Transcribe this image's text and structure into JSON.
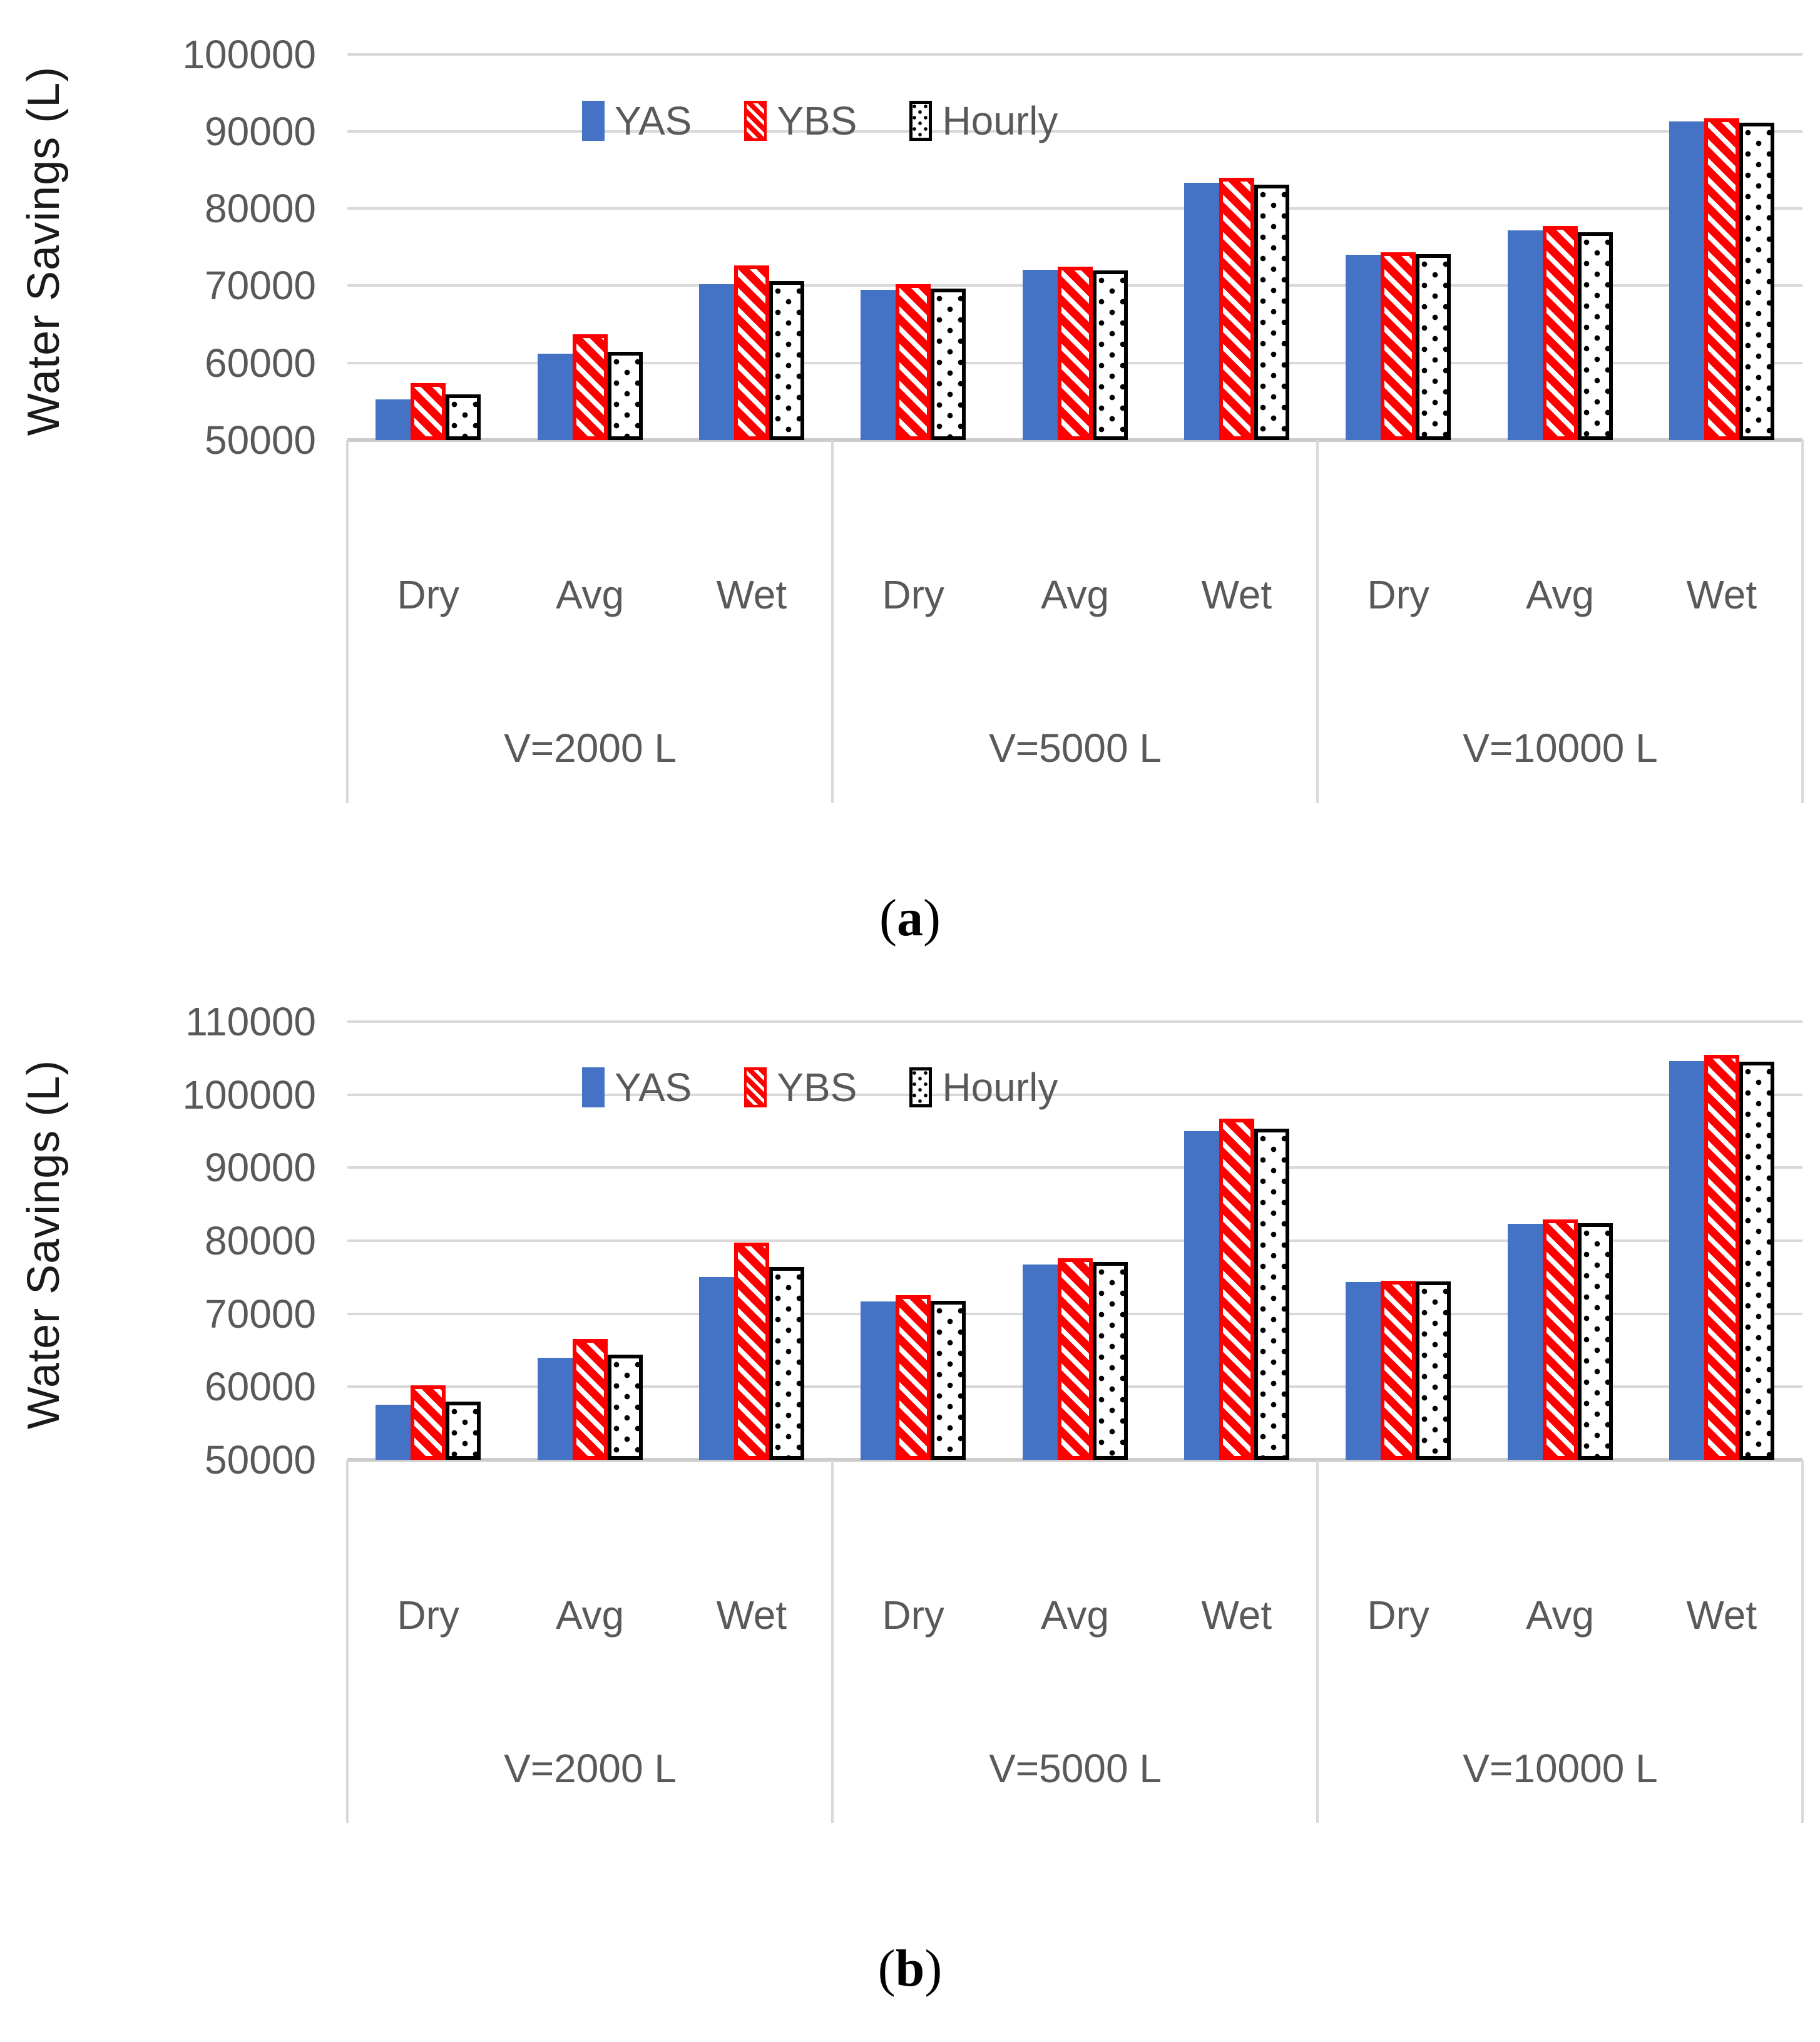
{
  "chart_data": [
    {
      "type": "bar",
      "panel": "a",
      "title": "",
      "ylabel": "Water Savings (L)",
      "ylim": [
        50000,
        100000
      ],
      "ytick_step": 10000,
      "y_ticks": [
        100000,
        90000,
        80000,
        70000,
        60000,
        50000
      ],
      "grid": true,
      "legend_position": "top-center",
      "group_labels": [
        "V=2000 L",
        "V=5000 L",
        "V=10000 L"
      ],
      "condition_labels": [
        "Dry",
        "Avg",
        "Wet"
      ],
      "categories": [
        "Dry",
        "Avg",
        "Wet",
        "Dry",
        "Avg",
        "Wet",
        "Dry",
        "Avg",
        "Wet"
      ],
      "series": [
        {
          "name": "YAS",
          "pattern": "solid",
          "color": "#4472C4",
          "values": [
            55300,
            61200,
            70200,
            69500,
            72100,
            83300,
            74000,
            77200,
            91300
          ]
        },
        {
          "name": "YBS",
          "pattern": "diagonal-stripes",
          "color": "#FF0000",
          "values": [
            57400,
            63700,
            72600,
            70200,
            72500,
            84000,
            74300,
            77700,
            91700
          ]
        },
        {
          "name": "Hourly",
          "pattern": "dots",
          "color": "#000000",
          "values": [
            55900,
            61400,
            70600,
            69600,
            72000,
            83100,
            74100,
            76900,
            91100
          ]
        }
      ],
      "caption": {
        "open": "(",
        "letter": "a",
        "close": ")"
      }
    },
    {
      "type": "bar",
      "panel": "b",
      "title": "",
      "ylabel": "Water Savings (L)",
      "ylim": [
        50000,
        110000
      ],
      "ytick_step": 10000,
      "y_ticks": [
        110000,
        100000,
        90000,
        80000,
        70000,
        60000,
        50000
      ],
      "grid": true,
      "legend_position": "top-center",
      "group_labels": [
        "V=2000 L",
        "V=5000 L",
        "V=10000 L"
      ],
      "condition_labels": [
        "Dry",
        "Avg",
        "Wet"
      ],
      "categories": [
        "Dry",
        "Avg",
        "Wet",
        "Dry",
        "Avg",
        "Wet",
        "Dry",
        "Avg",
        "Wet"
      ],
      "series": [
        {
          "name": "YAS",
          "pattern": "solid",
          "color": "#4472C4",
          "values": [
            57500,
            64000,
            75000,
            71700,
            76700,
            95000,
            74300,
            82300,
            104600
          ]
        },
        {
          "name": "YBS",
          "pattern": "diagonal-stripes",
          "color": "#FF0000",
          "values": [
            60200,
            66500,
            79700,
            72500,
            77600,
            96700,
            74500,
            82900,
            105400
          ]
        },
        {
          "name": "Hourly",
          "pattern": "dots",
          "color": "#000000",
          "values": [
            58000,
            64400,
            76400,
            71800,
            77100,
            95300,
            74400,
            82400,
            104500
          ]
        }
      ],
      "caption": {
        "open": "(",
        "letter": "b",
        "close": ")"
      }
    }
  ],
  "style_colors": {
    "bar_blue": "#4472C4",
    "stripe_red": "#FF0000",
    "pattern_black": "#000000",
    "gridline": "#D9D9D9",
    "tick_text": "#595959",
    "axis_title_text": "#1A1A1A"
  }
}
